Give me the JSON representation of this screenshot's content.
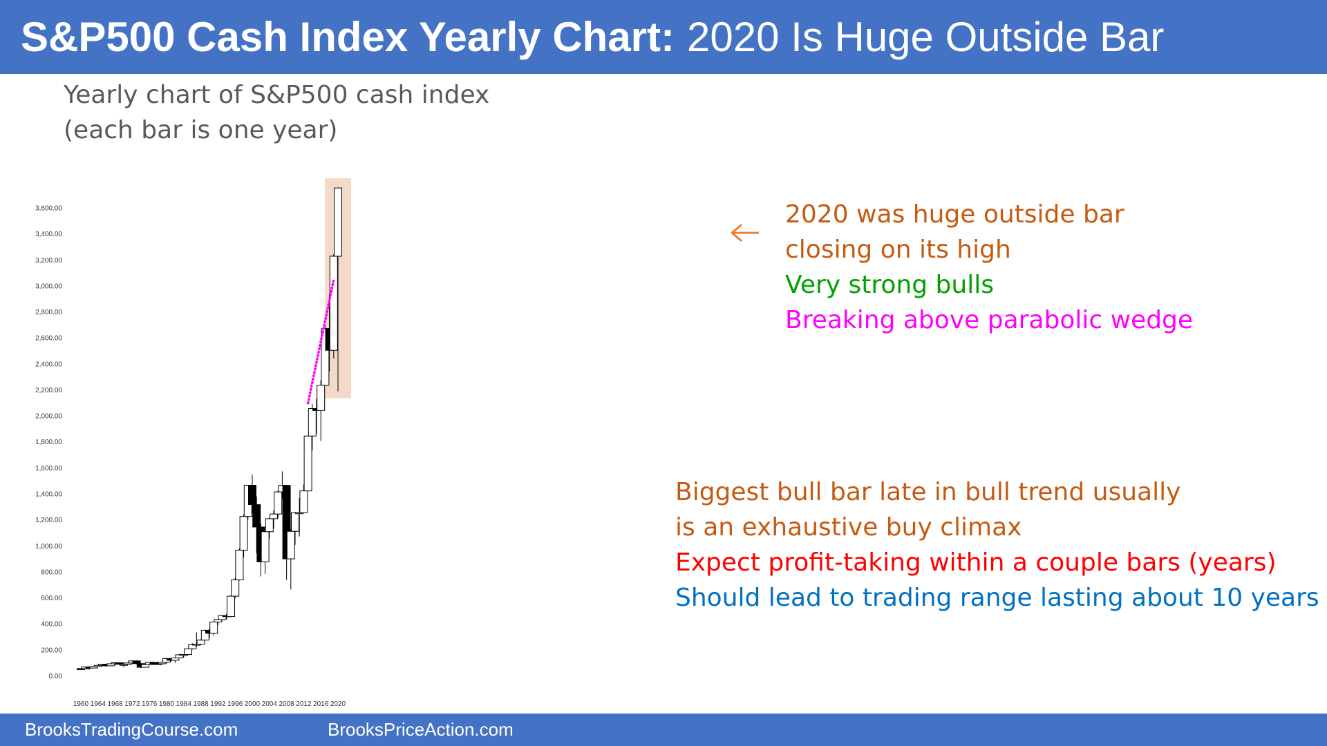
{
  "header": {
    "title_bold": "S&P500 Cash Index Yearly Chart:",
    "title_rest": "2020 Is Huge Outside Bar"
  },
  "subtitle": {
    "line1": "Yearly chart of S&P500 cash index",
    "line2": "(each bar is one year)"
  },
  "annotations": {
    "top": [
      {
        "text": "2020 was huge outside bar",
        "color": "#c55a11"
      },
      {
        "text": "closing on its high",
        "color": "#c55a11"
      },
      {
        "text": "Very strong bulls",
        "color": "#00a000"
      },
      {
        "text": "Breaking above parabolic wedge",
        "color": "#ff00ff"
      }
    ],
    "bottom": [
      {
        "text": "Biggest bull bar late in bull trend usually",
        "color": "#c55a11"
      },
      {
        "text": "is an exhaustive buy climax",
        "color": "#c55a11"
      },
      {
        "text": "Expect profit-taking within a couple bars (years)",
        "color": "#ff0000"
      },
      {
        "text": "Should lead to trading range lasting about 10 years",
        "color": "#0070c0"
      }
    ]
  },
  "footer": {
    "left": "BrooksTradingCourse.com",
    "right": "BrooksPriceAction.com"
  },
  "colors": {
    "header_bg": "#4472c4",
    "highlight": "#f4d9c9",
    "wedge_line": "#ff00ff",
    "arrow": "#ed7d31"
  },
  "chart_data": {
    "type": "candlestick",
    "ylim": [
      0,
      3600
    ],
    "y_ticks": [
      "0.00",
      "200.00",
      "400.00",
      "600.00",
      "800.00",
      "1,000.00",
      "1,200.00",
      "1,400.00",
      "1,600.00",
      "1,800.00",
      "2,000.00",
      "2,200.00",
      "2,400.00",
      "2,600.00",
      "2,800.00",
      "3,000.00",
      "3,200.00",
      "3,400.00",
      "3,600.00"
    ],
    "y_tick_values": [
      0,
      200,
      400,
      600,
      800,
      1000,
      1200,
      1400,
      1600,
      1800,
      2000,
      2200,
      2400,
      2600,
      2800,
      3000,
      3200,
      3400,
      3600
    ],
    "x_ticks": [
      "1960",
      "1964",
      "1968",
      "1972",
      "1976",
      "1980",
      "1984",
      "1988",
      "1992",
      "1996",
      "2000",
      "2004",
      "2008",
      "2012",
      "2016",
      "2020"
    ],
    "x_tick_values": [
      1960,
      1964,
      1968,
      1972,
      1976,
      1980,
      1984,
      1988,
      1992,
      1996,
      2000,
      2004,
      2008,
      2012,
      2016,
      2020
    ],
    "highlight_year": 2020,
    "wedge": [
      [
        2013,
        2100
      ],
      [
        2019,
        3050
      ]
    ],
    "candles": [
      {
        "year": 1960,
        "open": 59,
        "high": 61,
        "low": 52,
        "close": 58
      },
      {
        "year": 1961,
        "open": 58,
        "high": 73,
        "low": 57,
        "close": 71
      },
      {
        "year": 1962,
        "open": 71,
        "high": 71,
        "low": 52,
        "close": 63
      },
      {
        "year": 1963,
        "open": 63,
        "high": 75,
        "low": 62,
        "close": 75
      },
      {
        "year": 1964,
        "open": 75,
        "high": 86,
        "low": 75,
        "close": 84
      },
      {
        "year": 1965,
        "open": 84,
        "high": 93,
        "low": 81,
        "close": 92
      },
      {
        "year": 1966,
        "open": 92,
        "high": 94,
        "low": 73,
        "close": 80
      },
      {
        "year": 1967,
        "open": 80,
        "high": 98,
        "low": 80,
        "close": 96
      },
      {
        "year": 1968,
        "open": 96,
        "high": 108,
        "low": 87,
        "close": 104
      },
      {
        "year": 1969,
        "open": 104,
        "high": 107,
        "low": 89,
        "close": 92
      },
      {
        "year": 1970,
        "open": 92,
        "high": 94,
        "low": 69,
        "close": 92
      },
      {
        "year": 1971,
        "open": 92,
        "high": 105,
        "low": 90,
        "close": 102
      },
      {
        "year": 1972,
        "open": 102,
        "high": 120,
        "low": 101,
        "close": 118
      },
      {
        "year": 1973,
        "open": 118,
        "high": 121,
        "low": 92,
        "close": 97
      },
      {
        "year": 1974,
        "open": 97,
        "high": 99,
        "low": 62,
        "close": 69
      },
      {
        "year": 1975,
        "open": 69,
        "high": 96,
        "low": 70,
        "close": 90
      },
      {
        "year": 1976,
        "open": 90,
        "high": 108,
        "low": 90,
        "close": 107
      },
      {
        "year": 1977,
        "open": 107,
        "high": 107,
        "low": 90,
        "close": 95
      },
      {
        "year": 1978,
        "open": 95,
        "high": 107,
        "low": 86,
        "close": 96
      },
      {
        "year": 1979,
        "open": 96,
        "high": 111,
        "low": 96,
        "close": 108
      },
      {
        "year": 1980,
        "open": 108,
        "high": 141,
        "low": 98,
        "close": 136
      },
      {
        "year": 1981,
        "open": 136,
        "high": 138,
        "low": 112,
        "close": 123
      },
      {
        "year": 1982,
        "open": 123,
        "high": 143,
        "low": 102,
        "close": 141
      },
      {
        "year": 1983,
        "open": 141,
        "high": 172,
        "low": 138,
        "close": 165
      },
      {
        "year": 1984,
        "open": 165,
        "high": 170,
        "low": 147,
        "close": 167
      },
      {
        "year": 1985,
        "open": 167,
        "high": 212,
        "low": 163,
        "close": 211
      },
      {
        "year": 1986,
        "open": 211,
        "high": 254,
        "low": 204,
        "close": 242
      },
      {
        "year": 1987,
        "open": 242,
        "high": 337,
        "low": 223,
        "close": 247
      },
      {
        "year": 1988,
        "open": 247,
        "high": 284,
        "low": 242,
        "close": 278
      },
      {
        "year": 1989,
        "open": 278,
        "high": 360,
        "low": 275,
        "close": 353
      },
      {
        "year": 1990,
        "open": 353,
        "high": 369,
        "low": 295,
        "close": 330
      },
      {
        "year": 1991,
        "open": 330,
        "high": 418,
        "low": 312,
        "close": 417
      },
      {
        "year": 1992,
        "open": 417,
        "high": 441,
        "low": 394,
        "close": 436
      },
      {
        "year": 1993,
        "open": 436,
        "high": 471,
        "low": 429,
        "close": 466
      },
      {
        "year": 1994,
        "open": 466,
        "high": 482,
        "low": 438,
        "close": 459
      },
      {
        "year": 1995,
        "open": 459,
        "high": 622,
        "low": 457,
        "close": 616
      },
      {
        "year": 1996,
        "open": 616,
        "high": 757,
        "low": 598,
        "close": 741
      },
      {
        "year": 1997,
        "open": 741,
        "high": 984,
        "low": 737,
        "close": 970
      },
      {
        "year": 1998,
        "open": 970,
        "high": 1244,
        "low": 912,
        "close": 1229
      },
      {
        "year": 1999,
        "open": 1229,
        "high": 1473,
        "low": 1205,
        "close": 1469
      },
      {
        "year": 2000,
        "open": 1469,
        "high": 1553,
        "low": 1254,
        "close": 1320
      },
      {
        "year": 2001,
        "open": 1320,
        "high": 1383,
        "low": 945,
        "close": 1148
      },
      {
        "year": 2002,
        "open": 1148,
        "high": 1176,
        "low": 768,
        "close": 880
      },
      {
        "year": 2003,
        "open": 880,
        "high": 1112,
        "low": 788,
        "close": 1112
      },
      {
        "year": 2004,
        "open": 1112,
        "high": 1217,
        "low": 1060,
        "close": 1212
      },
      {
        "year": 2005,
        "open": 1212,
        "high": 1275,
        "low": 1137,
        "close": 1248
      },
      {
        "year": 2006,
        "open": 1248,
        "high": 1431,
        "low": 1219,
        "close": 1418
      },
      {
        "year": 2007,
        "open": 1418,
        "high": 1576,
        "low": 1363,
        "close": 1468
      },
      {
        "year": 2008,
        "open": 1468,
        "high": 1471,
        "low": 741,
        "close": 903
      },
      {
        "year": 2009,
        "open": 903,
        "high": 1130,
        "low": 667,
        "close": 1115
      },
      {
        "year": 2010,
        "open": 1115,
        "high": 1263,
        "low": 1011,
        "close": 1258
      },
      {
        "year": 2011,
        "open": 1258,
        "high": 1371,
        "low": 1075,
        "close": 1258
      },
      {
        "year": 2012,
        "open": 1258,
        "high": 1475,
        "low": 1259,
        "close": 1426
      },
      {
        "year": 2013,
        "open": 1426,
        "high": 1849,
        "low": 1426,
        "close": 1848
      },
      {
        "year": 2014,
        "open": 1848,
        "high": 2094,
        "low": 1737,
        "close": 2059
      },
      {
        "year": 2015,
        "open": 2059,
        "high": 2135,
        "low": 1867,
        "close": 2044
      },
      {
        "year": 2016,
        "open": 2044,
        "high": 2277,
        "low": 1810,
        "close": 2239
      },
      {
        "year": 2017,
        "open": 2239,
        "high": 2695,
        "low": 2245,
        "close": 2674
      },
      {
        "year": 2018,
        "open": 2674,
        "high": 2941,
        "low": 2347,
        "close": 2507
      },
      {
        "year": 2019,
        "open": 2507,
        "high": 3247,
        "low": 2444,
        "close": 3231
      },
      {
        "year": 2020,
        "open": 3231,
        "high": 3756,
        "low": 2192,
        "close": 3756
      }
    ]
  }
}
